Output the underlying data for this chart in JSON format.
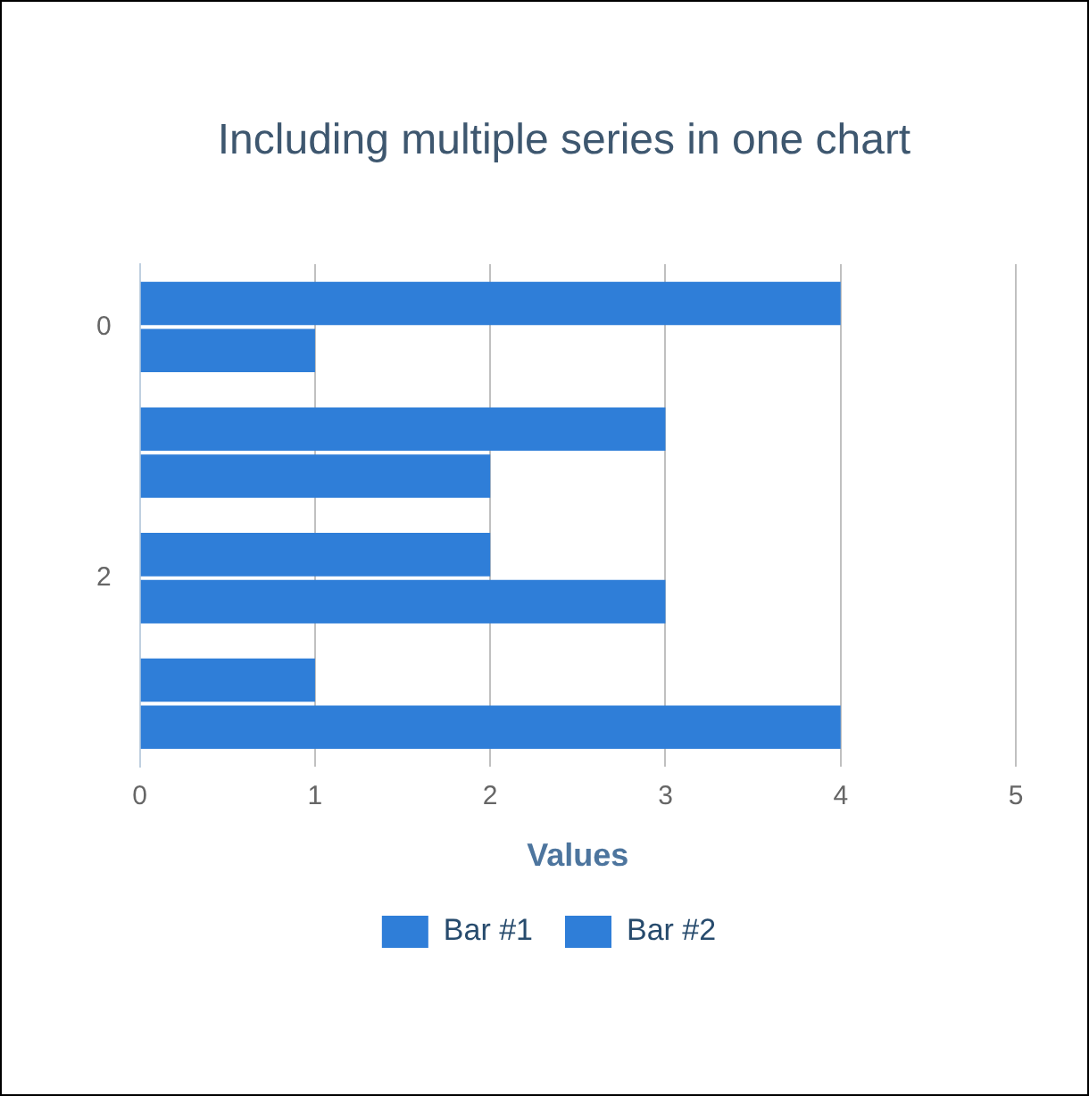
{
  "chart_data": {
    "type": "bar",
    "orientation": "horizontal",
    "title": "Including multiple series in one chart",
    "xlabel": "Values",
    "categories": [
      "0",
      null,
      "2",
      null
    ],
    "series": [
      {
        "name": "Bar #1",
        "color": "#2f7ed8",
        "values": [
          4,
          3,
          2,
          1
        ]
      },
      {
        "name": "Bar #2",
        "color": "#2f7ed8",
        "values": [
          1,
          2,
          3,
          4
        ]
      }
    ],
    "xlim": [
      0,
      5
    ],
    "xticks": [
      0,
      1,
      2,
      3,
      4,
      5
    ],
    "grid": "x",
    "legend": "bottom"
  }
}
